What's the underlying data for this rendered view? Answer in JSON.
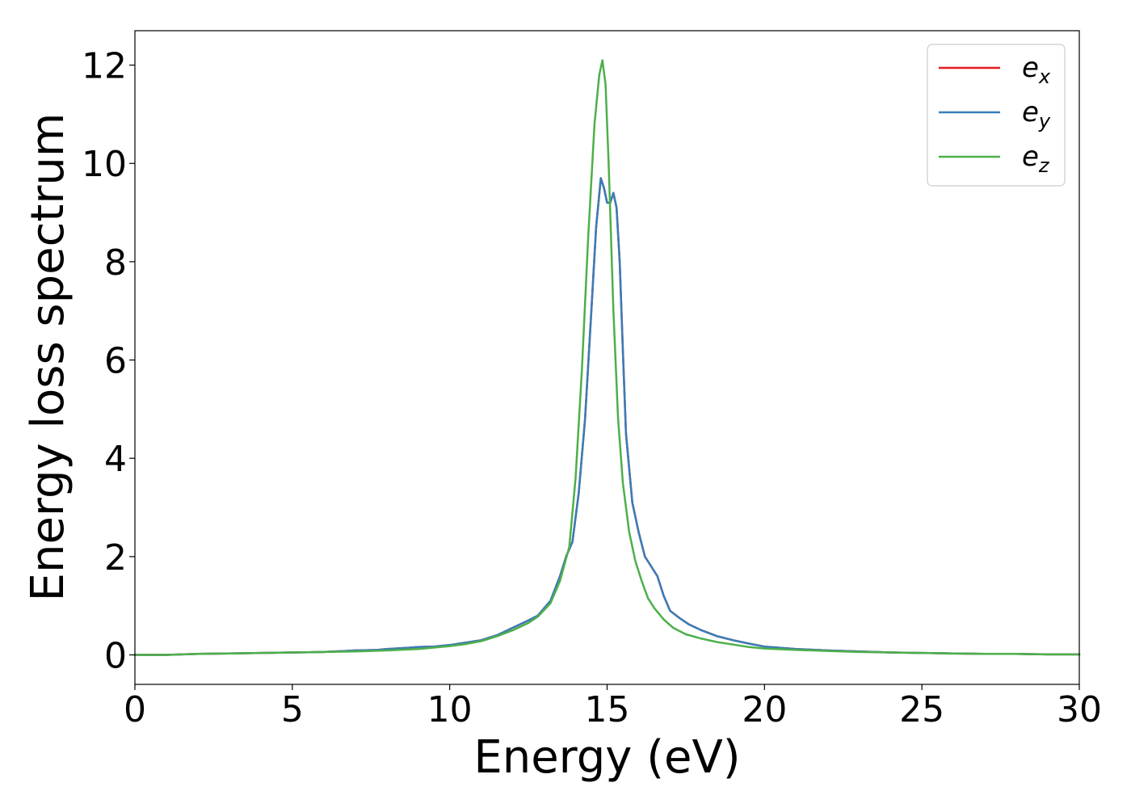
{
  "chart_data": {
    "type": "line",
    "title": "",
    "xlabel": "Energy (eV)",
    "ylabel": "Energy loss spectrum",
    "xlim": [
      0,
      30
    ],
    "ylim": [
      -0.6,
      12.7
    ],
    "x_ticks": [
      0,
      5,
      10,
      15,
      20,
      25,
      30
    ],
    "x_tick_labels": [
      "0",
      "5",
      "10",
      "15",
      "20",
      "25",
      "30"
    ],
    "y_ticks": [
      0,
      2,
      4,
      6,
      8,
      10,
      12
    ],
    "y_tick_labels": [
      "0",
      "2",
      "4",
      "6",
      "8",
      "10",
      "12"
    ],
    "grid": false,
    "legend_position": "top-right",
    "series": [
      {
        "name": "e_x",
        "legend_base": "e",
        "legend_sub": "x",
        "color": "#e41a1c",
        "x": [
          0,
          1,
          2,
          3,
          4,
          5,
          6,
          6.7,
          7,
          7.7,
          8,
          8.8,
          9,
          9.5,
          10,
          10.5,
          11,
          11.5,
          12,
          12.5,
          12.8,
          13.2,
          13.5,
          13.7,
          13.9,
          14.1,
          14.3,
          14.5,
          14.65,
          14.8,
          14.9,
          15.0,
          15.1,
          15.2,
          15.3,
          15.4,
          15.5,
          15.6,
          15.8,
          16.0,
          16.2,
          16.4,
          16.6,
          16.8,
          17.0,
          17.3,
          17.6,
          18.0,
          18.5,
          19.0,
          19.5,
          20,
          21,
          22,
          23,
          24,
          25,
          26,
          27,
          28,
          29,
          30
        ],
        "y": [
          0.0,
          0.0,
          0.02,
          0.03,
          0.04,
          0.05,
          0.06,
          0.08,
          0.09,
          0.1,
          0.12,
          0.15,
          0.16,
          0.17,
          0.2,
          0.25,
          0.3,
          0.4,
          0.55,
          0.7,
          0.8,
          1.1,
          1.6,
          2.0,
          2.3,
          3.3,
          4.8,
          7.0,
          8.7,
          9.7,
          9.5,
          9.2,
          9.2,
          9.4,
          9.1,
          8.0,
          6.2,
          4.5,
          3.1,
          2.5,
          2.0,
          1.8,
          1.6,
          1.2,
          0.9,
          0.75,
          0.62,
          0.5,
          0.38,
          0.3,
          0.23,
          0.17,
          0.12,
          0.09,
          0.07,
          0.05,
          0.04,
          0.03,
          0.02,
          0.02,
          0.01,
          0.01
        ]
      },
      {
        "name": "e_y",
        "legend_base": "e",
        "legend_sub": "y",
        "color": "#377eb8",
        "x": [
          0,
          1,
          2,
          3,
          4,
          5,
          6,
          6.7,
          7,
          7.7,
          8,
          8.8,
          9,
          9.5,
          10,
          10.5,
          11,
          11.5,
          12,
          12.5,
          12.8,
          13.2,
          13.5,
          13.7,
          13.9,
          14.1,
          14.3,
          14.5,
          14.65,
          14.8,
          14.9,
          15.0,
          15.1,
          15.2,
          15.3,
          15.4,
          15.5,
          15.6,
          15.8,
          16.0,
          16.2,
          16.4,
          16.6,
          16.8,
          17.0,
          17.3,
          17.6,
          18.0,
          18.5,
          19.0,
          19.5,
          20,
          21,
          22,
          23,
          24,
          25,
          26,
          27,
          28,
          29,
          30
        ],
        "y": [
          0.0,
          0.0,
          0.02,
          0.03,
          0.04,
          0.05,
          0.06,
          0.08,
          0.09,
          0.1,
          0.12,
          0.15,
          0.16,
          0.17,
          0.2,
          0.25,
          0.3,
          0.4,
          0.55,
          0.7,
          0.8,
          1.1,
          1.6,
          2.0,
          2.3,
          3.3,
          4.8,
          7.0,
          8.7,
          9.7,
          9.5,
          9.2,
          9.2,
          9.4,
          9.1,
          8.0,
          6.2,
          4.5,
          3.1,
          2.5,
          2.0,
          1.8,
          1.6,
          1.2,
          0.9,
          0.75,
          0.62,
          0.5,
          0.38,
          0.3,
          0.23,
          0.17,
          0.12,
          0.09,
          0.07,
          0.05,
          0.04,
          0.03,
          0.02,
          0.02,
          0.01,
          0.01
        ]
      },
      {
        "name": "e_z",
        "legend_base": "e",
        "legend_sub": "z",
        "color": "#4daf4a",
        "x": [
          0,
          1,
          2,
          3,
          4,
          5,
          6,
          7,
          8,
          9,
          10,
          10.5,
          11,
          11.5,
          12,
          12.5,
          12.8,
          13.2,
          13.5,
          13.8,
          14.0,
          14.2,
          14.4,
          14.6,
          14.75,
          14.85,
          14.95,
          15.05,
          15.2,
          15.35,
          15.5,
          15.7,
          15.9,
          16.1,
          16.3,
          16.5,
          16.8,
          17.1,
          17.5,
          18.0,
          18.5,
          19.0,
          19.5,
          20,
          21,
          22,
          23,
          24,
          25,
          26,
          27,
          28,
          29,
          30
        ],
        "y": [
          0.0,
          0.0,
          0.02,
          0.03,
          0.04,
          0.05,
          0.06,
          0.07,
          0.09,
          0.12,
          0.18,
          0.22,
          0.28,
          0.38,
          0.5,
          0.65,
          0.78,
          1.05,
          1.5,
          2.2,
          3.6,
          5.8,
          8.5,
          10.8,
          11.8,
          12.1,
          11.6,
          10.0,
          7.0,
          4.8,
          3.5,
          2.5,
          1.9,
          1.5,
          1.15,
          0.95,
          0.72,
          0.55,
          0.42,
          0.33,
          0.26,
          0.21,
          0.16,
          0.13,
          0.1,
          0.08,
          0.06,
          0.05,
          0.04,
          0.03,
          0.02,
          0.02,
          0.01,
          0.01
        ]
      }
    ]
  }
}
